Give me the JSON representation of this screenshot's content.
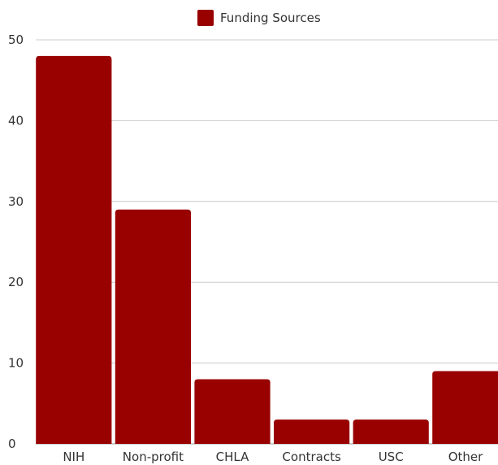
{
  "chart_data": {
    "type": "bar",
    "categories": [
      "NIH",
      "Non-profit",
      "CHLA",
      "Contracts",
      "USC",
      "Other"
    ],
    "series": [
      {
        "name": "Funding Sources",
        "values": [
          48,
          29,
          8,
          3,
          3,
          9
        ],
        "color": "#990000"
      }
    ],
    "ylim": [
      0,
      50
    ],
    "yticks": [
      0,
      10,
      20,
      30,
      40,
      50
    ],
    "grid": true,
    "legend": "top-center",
    "gridColor": "#cccccc",
    "textColor": "#333333"
  }
}
